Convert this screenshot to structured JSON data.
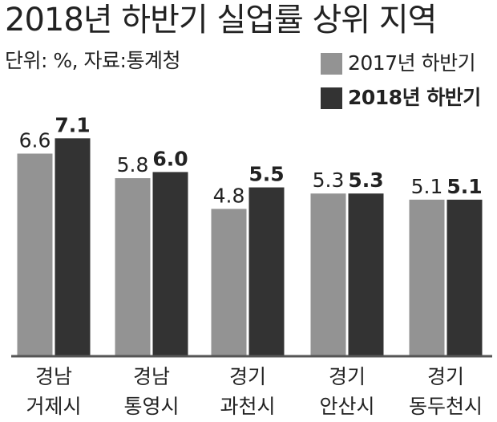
{
  "chart_data": {
    "type": "bar",
    "title": "2018년 하반기 실업률 상위 지역",
    "subtitle": "단위: %, 자료:통계청",
    "categories": [
      [
        "경남",
        "거제시"
      ],
      [
        "경남",
        "통영시"
      ],
      [
        "경기",
        "과천시"
      ],
      [
        "경기",
        "안산시"
      ],
      [
        "경기",
        "동두천시"
      ]
    ],
    "series": [
      {
        "name": "2017년 하반기",
        "values": [
          6.6,
          5.8,
          4.8,
          5.3,
          5.1
        ],
        "color": "#939393"
      },
      {
        "name": "2018년 하반기",
        "values": [
          7.1,
          6.0,
          5.5,
          5.3,
          5.1
        ],
        "color": "#333333"
      }
    ],
    "value_labels": [
      [
        "6.6",
        "5.8",
        "4.8",
        "5.3",
        "5.1"
      ],
      [
        "7.1",
        "6.0",
        "5.5",
        "5.3",
        "5.1"
      ]
    ],
    "ylim": [
      0,
      9.2
    ],
    "legend": "top-right",
    "grid": false,
    "axis_color": "#555555"
  }
}
